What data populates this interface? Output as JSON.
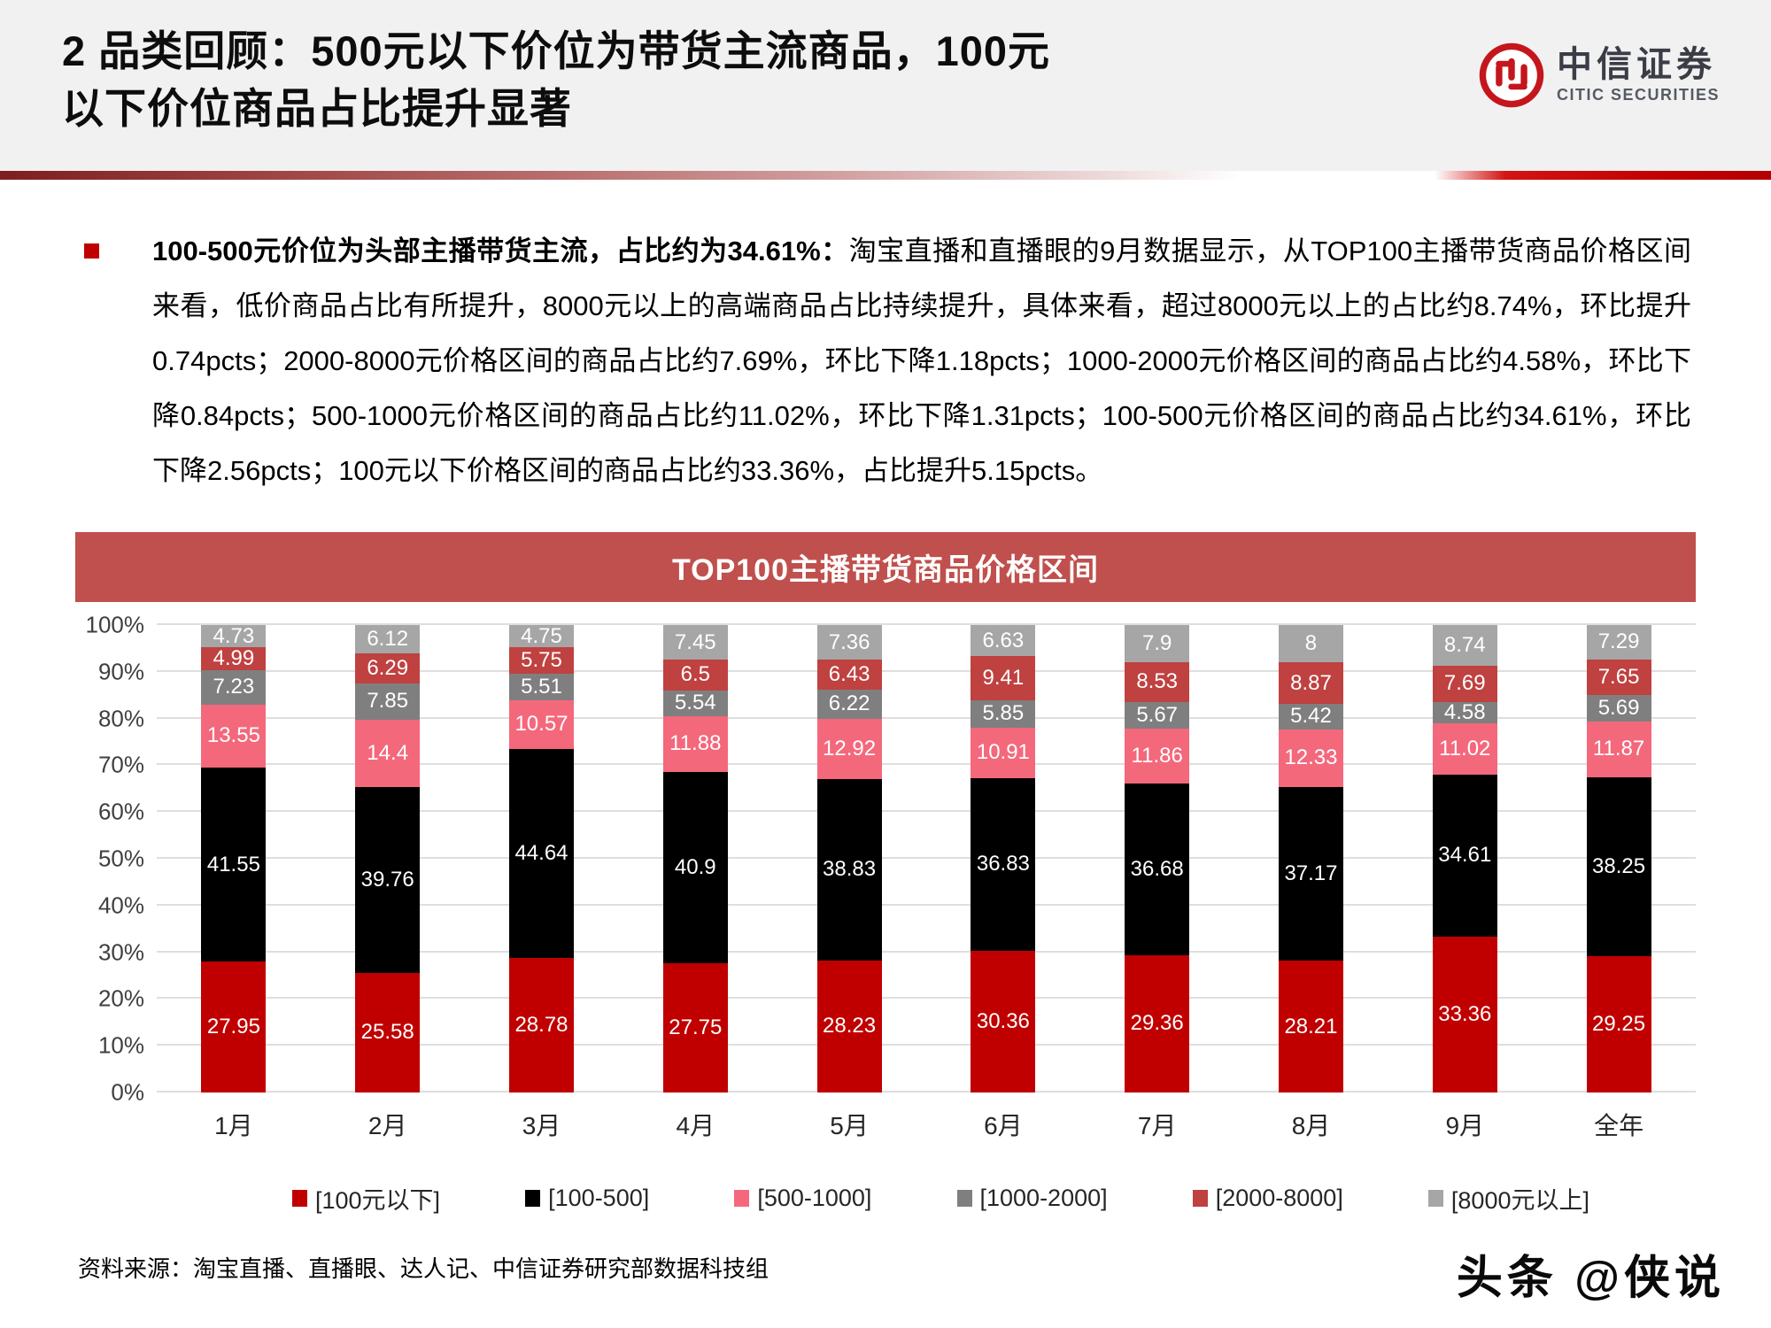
{
  "header": {
    "title_line1": "2 品类回顾：500元以下价位为带货主流商品，100元",
    "title_line2": "以下价位商品占比提升显著",
    "logo_cn": "中信证券",
    "logo_en": "CITIC SECURITIES"
  },
  "body": {
    "bold_lead": "100-500元价位为头部主播带货主流，占比约为34.61%：",
    "text": "淘宝直播和直播眼的9月数据显示，从TOP100主播带货商品价格区间来看，低价商品占比有所提升，8000元以上的高端商品占比持续提升，具体来看，超过8000元以上的占比约8.74%，环比提升0.74pcts；2000-8000元价格区间的商品占比约7.69%，环比下降1.18pcts；1000-2000元价格区间的商品占比约4.58%，环比下降0.84pcts；500-1000元价格区间的商品占比约11.02%，环比下降1.31pcts；100-500元价格区间的商品占比约34.61%，环比下降2.56pcts；100元以下价格区间的商品占比约33.36%，占比提升5.15pcts。"
  },
  "chart_data": {
    "type": "bar",
    "stacked": true,
    "title": "TOP100主播带货商品价格区间",
    "categories": [
      "1月",
      "2月",
      "3月",
      "4月",
      "5月",
      "6月",
      "7月",
      "8月",
      "9月",
      "全年"
    ],
    "series": [
      {
        "name": "[100元以下]",
        "color": "#c00000",
        "values": [
          27.95,
          25.58,
          28.78,
          27.75,
          28.23,
          30.36,
          29.36,
          28.21,
          33.36,
          29.25
        ]
      },
      {
        "name": "[100-500]",
        "color": "#000000",
        "values": [
          41.55,
          39.76,
          44.64,
          40.9,
          38.83,
          36.83,
          36.68,
          37.17,
          34.61,
          38.25
        ]
      },
      {
        "name": "[500-1000]",
        "color": "#f4687c",
        "values": [
          13.55,
          14.4,
          10.57,
          11.88,
          12.92,
          10.91,
          11.86,
          12.33,
          11.02,
          11.87
        ]
      },
      {
        "name": "[1000-2000]",
        "color": "#7f7f7f",
        "values": [
          7.23,
          7.85,
          5.51,
          5.54,
          6.22,
          5.85,
          5.67,
          5.42,
          4.58,
          5.69
        ]
      },
      {
        "name": "[2000-8000]",
        "color": "#bf4140",
        "values": [
          4.99,
          6.29,
          5.75,
          6.5,
          6.43,
          9.41,
          8.53,
          8.87,
          7.69,
          7.65
        ]
      },
      {
        "name": "[8000元以上]",
        "color": "#a6a6a6",
        "values": [
          4.73,
          6.12,
          4.75,
          7.45,
          7.36,
          6.63,
          7.9,
          8,
          8.74,
          7.29
        ]
      }
    ],
    "y_ticks": [
      "0%",
      "10%",
      "20%",
      "30%",
      "40%",
      "50%",
      "60%",
      "70%",
      "80%",
      "90%",
      "100%"
    ],
    "ylim": [
      0,
      100
    ],
    "grid": true,
    "legend_position": "bottom",
    "value_label_color": "#ffffff"
  },
  "footer": {
    "source": "资料来源：淘宝直播、直播眼、达人记、中信证券研究部数据科技组",
    "watermark": "头条 @侠说"
  },
  "colors": {
    "banner": "#c0504d",
    "header_bg": "#f1f1f2",
    "accent_red": "#c00000"
  }
}
